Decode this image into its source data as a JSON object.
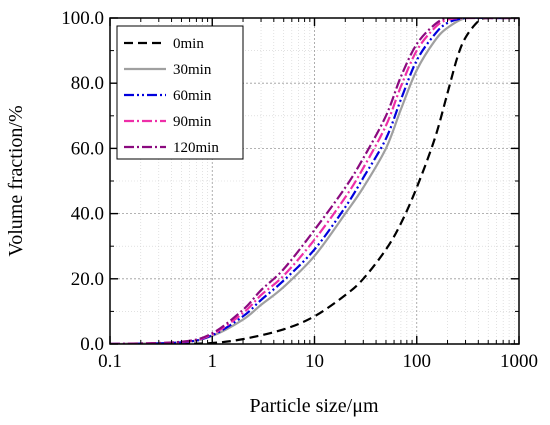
{
  "chart_data": {
    "type": "line",
    "title": "",
    "xlabel": "Particle size/μm",
    "ylabel": "Volume fraction/%",
    "xscale": "log",
    "xlim": [
      0.1,
      1000
    ],
    "ylim": [
      0,
      100
    ],
    "grid": true,
    "legend_position": "top-left",
    "x_ticks": [
      0.1,
      1,
      10,
      100,
      1000
    ],
    "x_tick_labels": [
      "0.1",
      "1",
      "10",
      "100",
      "1000"
    ],
    "y_ticks": [
      0,
      20,
      40,
      60,
      80,
      100
    ],
    "y_tick_labels": [
      "0.0",
      "20.0",
      "40.0",
      "60.0",
      "80.0",
      "100.0"
    ],
    "series": [
      {
        "name": "0min",
        "color": "#000000",
        "dash": "dash",
        "x": [
          0.1,
          0.5,
          1,
          2,
          5,
          10,
          20,
          30,
          50,
          70,
          100,
          150,
          200,
          250,
          300,
          400,
          500,
          1000
        ],
        "y": [
          0,
          0.1,
          0.3,
          1.5,
          4.5,
          8.5,
          15,
          20,
          29,
          37,
          48,
          63,
          77,
          88,
          94,
          99,
          100,
          100
        ]
      },
      {
        "name": "30min",
        "color": "#a0a0a0",
        "dash": "solid",
        "x": [
          0.1,
          0.5,
          1,
          2,
          3,
          5,
          10,
          20,
          30,
          50,
          70,
          100,
          150,
          200,
          300,
          500,
          1000
        ],
        "y": [
          0,
          0.5,
          2.5,
          7.5,
          12,
          17.5,
          27,
          40,
          48,
          60,
          72,
          84,
          93,
          97,
          100,
          100,
          100
        ]
      },
      {
        "name": "60min",
        "color": "#0000dd",
        "dash": "dashdotdot",
        "x": [
          0.1,
          0.5,
          1,
          2,
          3,
          5,
          10,
          20,
          30,
          50,
          70,
          100,
          150,
          200,
          300,
          500,
          1000
        ],
        "y": [
          0,
          0.5,
          2.7,
          8.5,
          13.5,
          19.5,
          29,
          42,
          51,
          63,
          75,
          87,
          95,
          98.5,
          100,
          100,
          100
        ]
      },
      {
        "name": "90min",
        "color": "#ee2ea8",
        "dash": "dashdot",
        "x": [
          0.1,
          0.5,
          1,
          2,
          3,
          5,
          10,
          20,
          30,
          50,
          70,
          100,
          150,
          200,
          300,
          500,
          1000
        ],
        "y": [
          0,
          0.6,
          3,
          9.5,
          15,
          21,
          32,
          45,
          54,
          67,
          79,
          90,
          97,
          99.5,
          100,
          100,
          100
        ]
      },
      {
        "name": "120min",
        "color": "#8b0a7f",
        "dash": "dashdot",
        "x": [
          0.1,
          0.5,
          1,
          2,
          3,
          5,
          10,
          20,
          30,
          50,
          70,
          100,
          150,
          200,
          300,
          500,
          1000
        ],
        "y": [
          0,
          0.7,
          3.3,
          10.5,
          16.5,
          23,
          35,
          48,
          57,
          70,
          82,
          92,
          98,
          100,
          100,
          100,
          100
        ]
      }
    ]
  }
}
